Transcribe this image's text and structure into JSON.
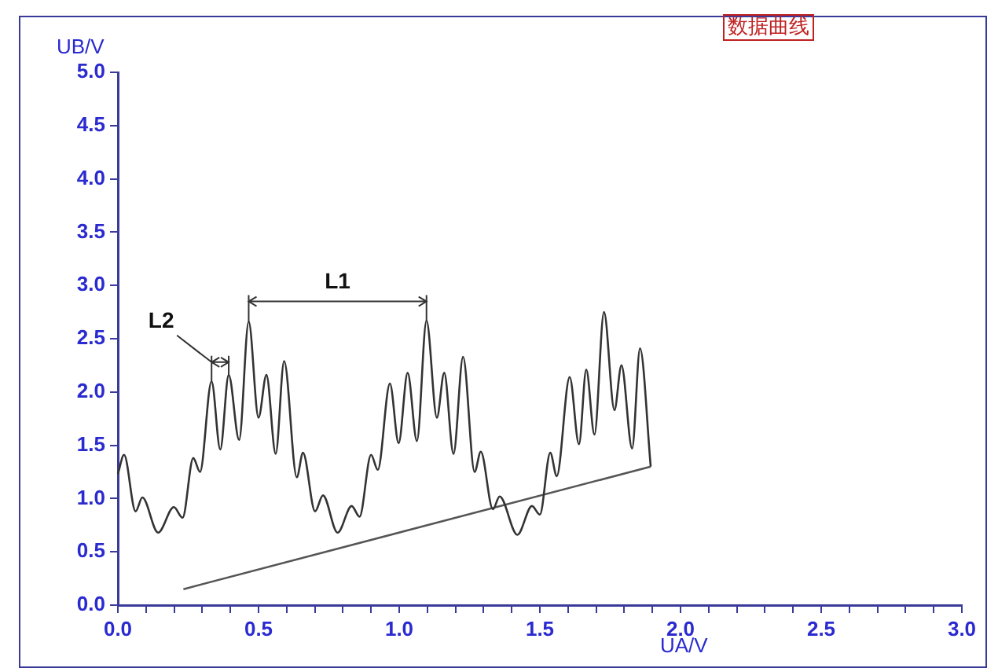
{
  "chart_data": {
    "type": "line",
    "title": "数据曲线",
    "xlabel": "UA/V",
    "ylabel": "UB/V",
    "xlim": [
      0,
      3
    ],
    "ylim": [
      0,
      5
    ],
    "xticks": [
      {
        "value": 0,
        "label": "0.0"
      },
      {
        "value": 0.1,
        "label": null
      },
      {
        "value": 0.2,
        "label": null
      },
      {
        "value": 0.3,
        "label": null
      },
      {
        "value": 0.4,
        "label": null
      },
      {
        "value": 0.5,
        "label": "0.5"
      },
      {
        "value": 0.6,
        "label": null
      },
      {
        "value": 0.7,
        "label": null
      },
      {
        "value": 0.8,
        "label": null
      },
      {
        "value": 0.9,
        "label": null
      },
      {
        "value": 1,
        "label": "1.0"
      },
      {
        "value": 1.1,
        "label": null
      },
      {
        "value": 1.2,
        "label": null
      },
      {
        "value": 1.3,
        "label": null
      },
      {
        "value": 1.4,
        "label": null
      },
      1.5,
      {
        "value": 1.6,
        "label": null
      },
      {
        "value": 1.7,
        "label": null
      },
      {
        "value": 1.8,
        "label": null
      },
      {
        "value": 1.9,
        "label": null
      },
      {
        "value": 2,
        "label": "2.0"
      },
      {
        "value": 2.1,
        "label": null
      },
      {
        "value": 2.2,
        "label": null
      },
      {
        "value": 2.3,
        "label": null
      },
      {
        "value": 2.4,
        "label": null
      },
      2.5,
      {
        "value": 2.6,
        "label": null
      },
      {
        "value": 2.7,
        "label": null
      },
      {
        "value": 2.8,
        "label": null
      },
      {
        "value": 2.9,
        "label": null
      },
      {
        "value": 3,
        "label": "3.0"
      }
    ],
    "yticks": [
      {
        "value": 0,
        "label": "0.0"
      },
      0.5,
      {
        "value": 1,
        "label": "1.0"
      },
      1.5,
      {
        "value": 2,
        "label": "2.0"
      },
      2.5,
      {
        "value": 3,
        "label": "3.0"
      },
      3.5,
      {
        "value": 4,
        "label": "4.0"
      },
      4.5,
      {
        "value": 5,
        "label": "5.0"
      }
    ],
    "grid": false,
    "legend": false,
    "marker": "none",
    "line_style": "solid",
    "series": [
      {
        "color": "#333333",
        "x": [
          0,
          0.022,
          0.063,
          0.087,
          0.143,
          0.199,
          0.23,
          0.268,
          0.292,
          0.333,
          0.364,
          0.394,
          0.431,
          0.465,
          0.5,
          0.528,
          0.561,
          0.591,
          0.636,
          0.658,
          0.701,
          0.729,
          0.781,
          0.831,
          0.859,
          0.9,
          0.924,
          0.967,
          0.998,
          1.03,
          1.063,
          1.097,
          1.134,
          1.16,
          1.193,
          1.227,
          1.268,
          1.29,
          1.333,
          1.357,
          1.42,
          1.472,
          1.5,
          1.537,
          1.56,
          1.606,
          1.639,
          1.665,
          1.694,
          1.728,
          1.765,
          1.79,
          1.828,
          1.856,
          1.894
        ],
        "values": [
          1.23,
          1.41,
          0.88,
          1.01,
          0.68,
          0.92,
          0.82,
          1.38,
          1.25,
          2.1,
          1.46,
          2.16,
          1.55,
          2.66,
          1.76,
          2.16,
          1.42,
          2.29,
          1.2,
          1.43,
          0.88,
          1.03,
          0.68,
          0.93,
          0.83,
          1.41,
          1.27,
          2.08,
          1.52,
          2.18,
          1.54,
          2.67,
          1.76,
          2.18,
          1.42,
          2.33,
          1.25,
          1.44,
          0.9,
          1.02,
          0.66,
          0.93,
          0.85,
          1.43,
          1.21,
          2.14,
          1.51,
          2.21,
          1.6,
          2.75,
          1.83,
          2.25,
          1.47,
          2.41,
          1.3
        ]
      },
      {
        "color": "#555555",
        "x": [
          0.233,
          1.894
        ],
        "values": [
          0.15,
          1.3
        ]
      }
    ],
    "annotations": [
      "L1",
      "L2"
    ]
  }
}
